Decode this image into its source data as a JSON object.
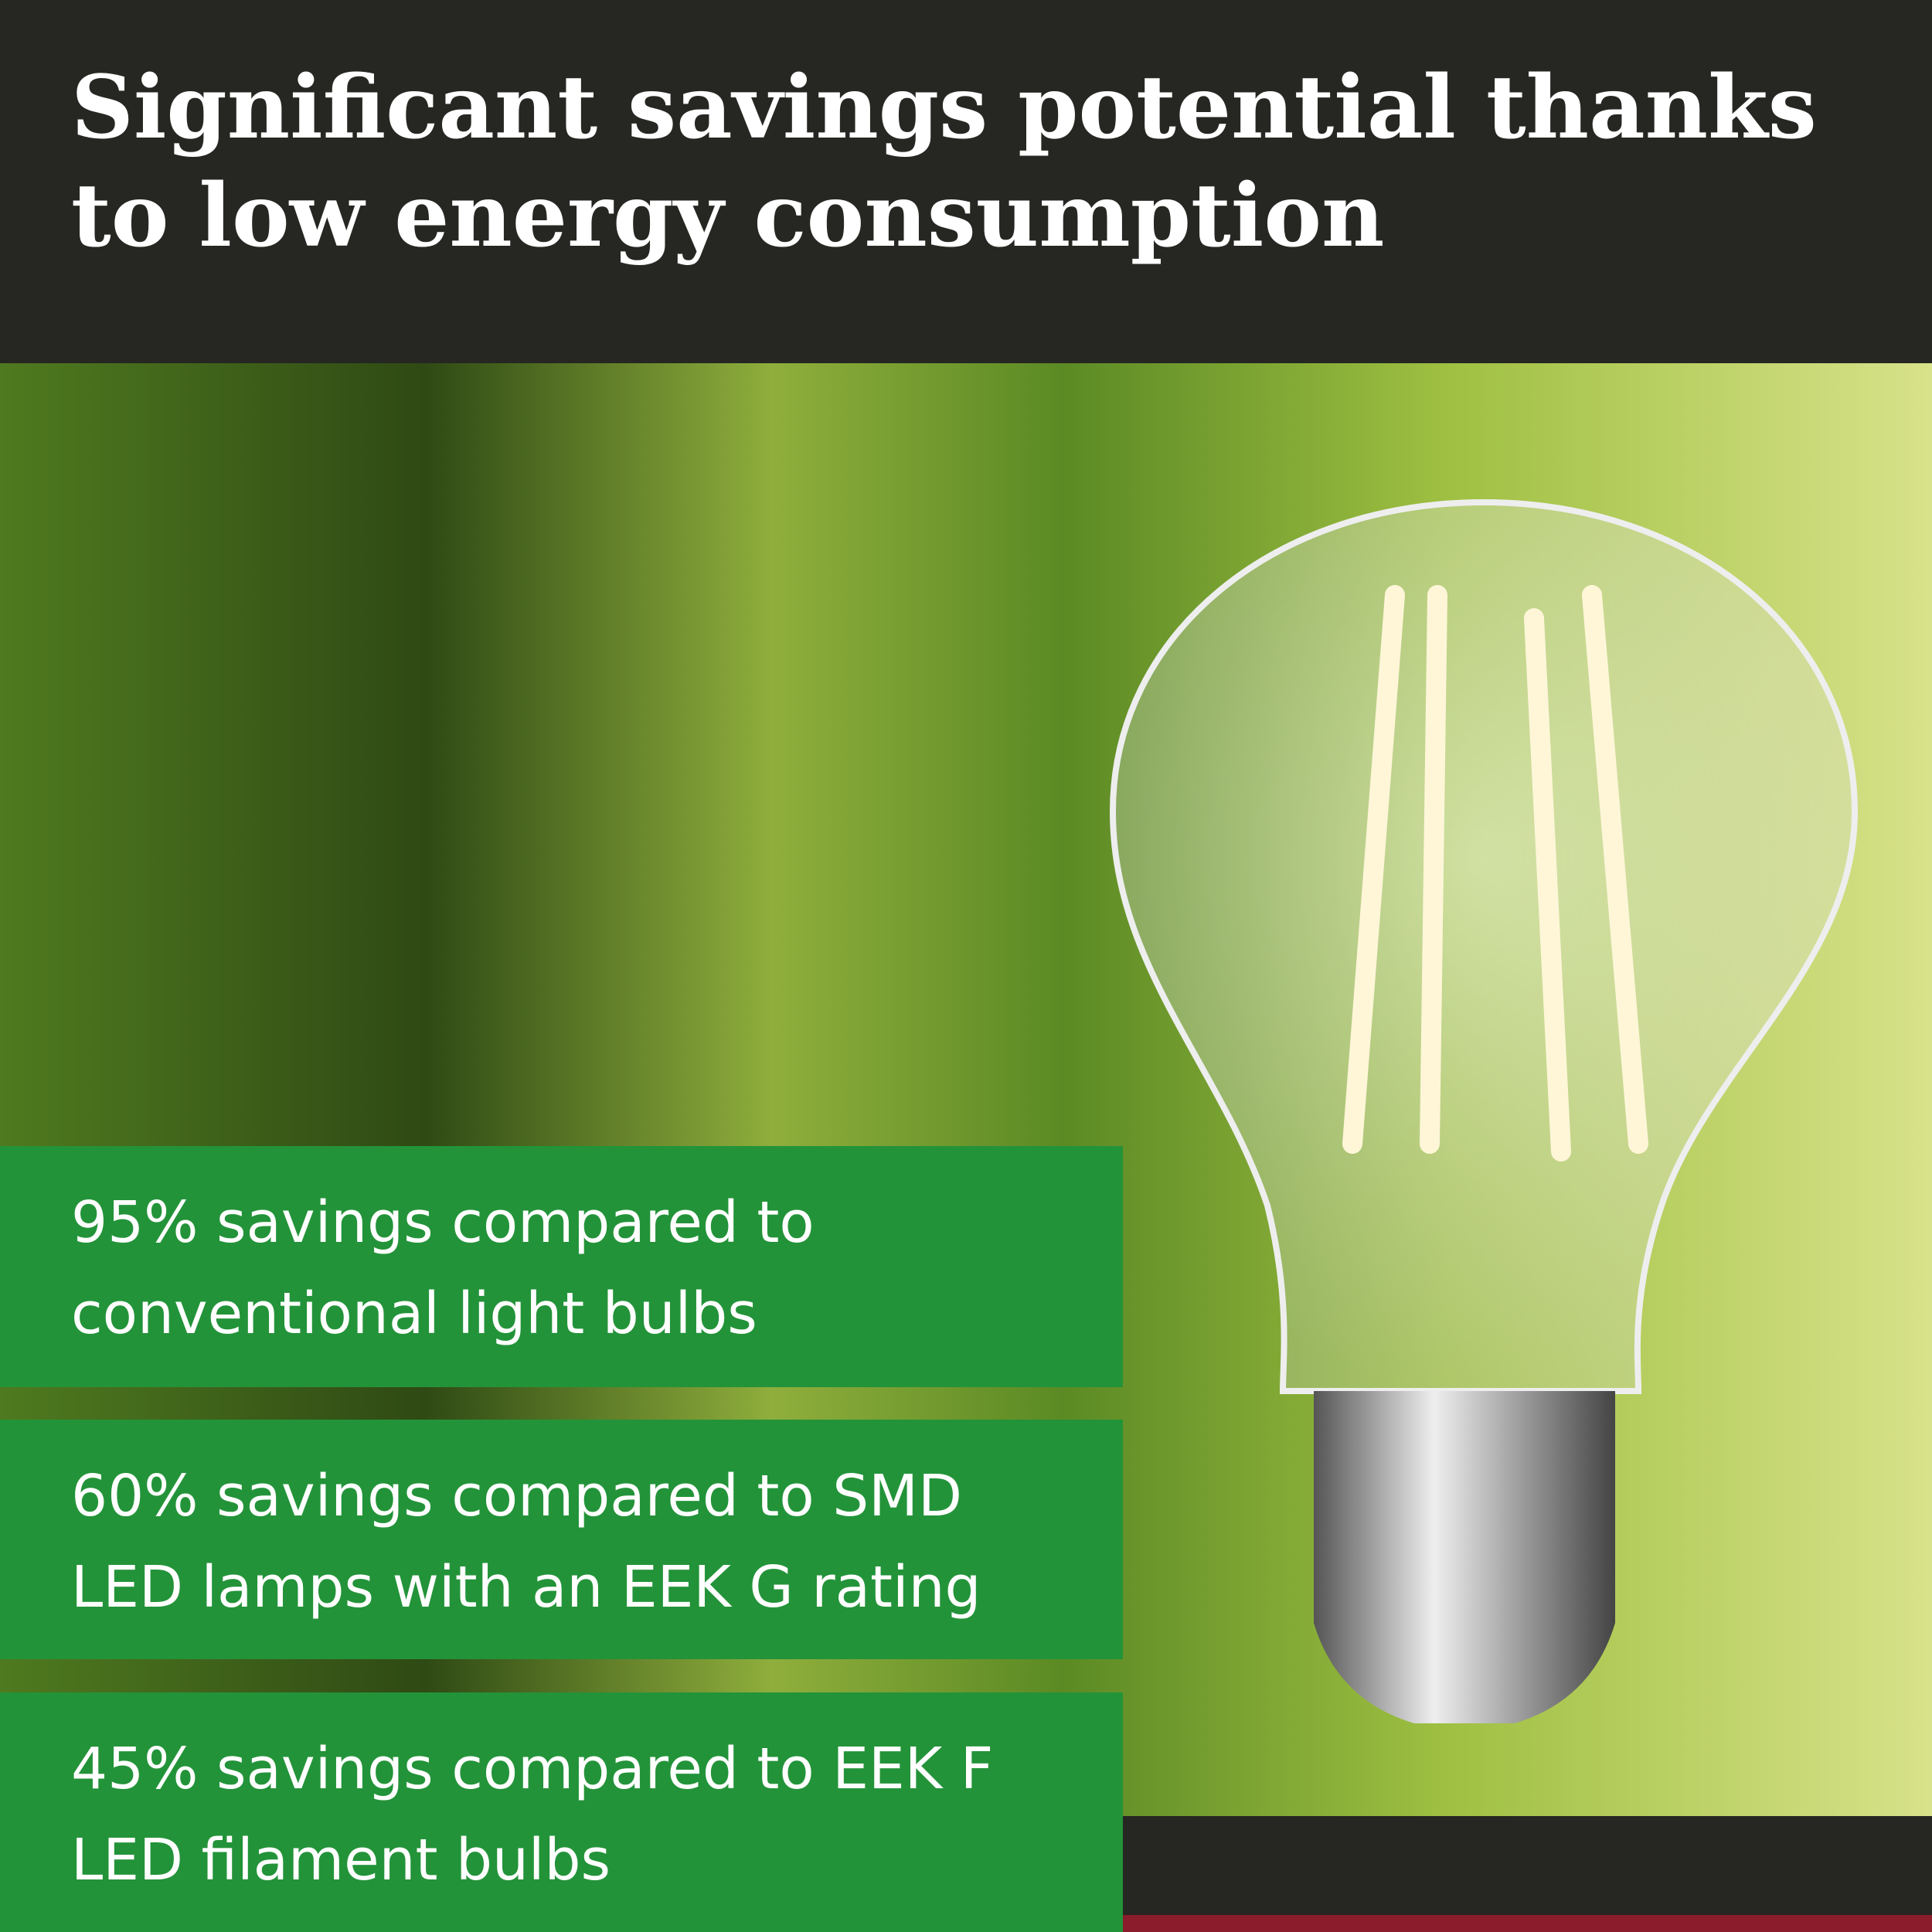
{
  "header": {
    "title": "Significant savings potential thanks to low energy consumption"
  },
  "benefits": [
    "95% savings compared to conventional light bulbs",
    "60% savings compared to SMD LED lamps with an EEK G rating",
    "45% savings compared to EEK F LED filament bulbs"
  ]
}
